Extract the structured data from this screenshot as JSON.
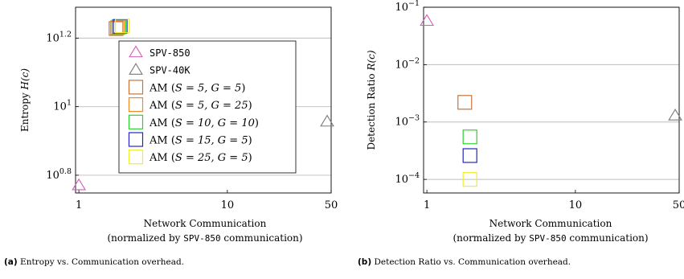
{
  "chart_data": [
    {
      "type": "scatter",
      "panel": "a",
      "xscale": "log",
      "yscale": "log",
      "xlim": [
        0.95,
        50
      ],
      "ylim": [
        5.6,
        19.5
      ],
      "grid": "horizontal",
      "legend_position": "top-right",
      "xlabel": "Network Communication",
      "xlabel_note_prefix": "(normalized by ",
      "xlabel_note_mono": "SPV-850",
      "xlabel_note_suffix": " communication)",
      "ylabel": "Entropy ",
      "ylabel_math": "H(c)",
      "xticks": [
        {
          "value": 1,
          "label": "1"
        },
        {
          "value": 10,
          "label": "10"
        },
        {
          "value": 50,
          "label": "50"
        }
      ],
      "yticks": [
        {
          "value": 6.3096,
          "base": "10",
          "exp": "0.8"
        },
        {
          "value": 10,
          "base": "10",
          "exp": "1"
        },
        {
          "value": 15.849,
          "base": "10",
          "exp": "1.2"
        }
      ],
      "series": [
        {
          "name": "SPV-850",
          "marker": "triangle",
          "color": "#d65cb6",
          "mono": true,
          "points": [
            [
              1.0,
              5.9
            ]
          ]
        },
        {
          "name": "SPV-40K",
          "marker": "triangle",
          "color": "#7a7a7a",
          "mono": true,
          "points": [
            [
              47.0,
              9.05
            ]
          ]
        },
        {
          "name_text": "AM (",
          "name_math": "S = 5, G = 5",
          "name_end": ")",
          "marker": "square",
          "color": "#c8733a",
          "points": [
            [
              1.78,
              16.9
            ]
          ]
        },
        {
          "name_text": "AM (",
          "name_math": "S = 5, G = 25",
          "name_end": ")",
          "marker": "square",
          "color": "#f08a24",
          "points": [
            [
              1.82,
              17.0
            ]
          ]
        },
        {
          "name_text": "AM (",
          "name_math": "S = 10, G = 10",
          "name_end": ")",
          "marker": "square",
          "color": "#2fd12f",
          "points": [
            [
              1.86,
              17.1
            ]
          ]
        },
        {
          "name_text": "AM (",
          "name_math": "S = 15, G = 5",
          "name_end": ")",
          "marker": "square",
          "color": "#2424c8",
          "points": [
            [
              1.9,
              17.15
            ]
          ]
        },
        {
          "name_text": "AM (",
          "name_math": "S = 25, G = 5",
          "name_end": ")",
          "marker": "square",
          "color": "#eeee2e",
          "points": [
            [
              1.96,
              17.2
            ]
          ]
        }
      ]
    },
    {
      "type": "scatter",
      "panel": "b",
      "xscale": "log",
      "yscale": "log",
      "xlim": [
        0.95,
        50
      ],
      "ylim": [
        5.8e-05,
        0.1
      ],
      "grid": "horizontal",
      "xlabel": "Network Communication",
      "xlabel_note_prefix": "(normalized by ",
      "xlabel_note_mono": "SPV-850",
      "xlabel_note_suffix": " communication)",
      "ylabel": "Detection Ratio ",
      "ylabel_math": "R(c)",
      "xticks": [
        {
          "value": 1,
          "label": "1"
        },
        {
          "value": 10,
          "label": "10"
        },
        {
          "value": 50,
          "label": "50"
        }
      ],
      "yticks": [
        {
          "value": 0.0001,
          "base": "10",
          "exp": "−4"
        },
        {
          "value": 0.001,
          "base": "10",
          "exp": "−3"
        },
        {
          "value": 0.01,
          "base": "10",
          "exp": "−2"
        },
        {
          "value": 0.1,
          "base": "10",
          "exp": "−1"
        }
      ],
      "series": [
        {
          "name": "SPV-850",
          "marker": "triangle",
          "color": "#d65cb6",
          "points": [
            [
              1.0,
              0.058
            ]
          ]
        },
        {
          "name": "SPV-40K",
          "marker": "triangle",
          "color": "#7a7a7a",
          "points": [
            [
              47.0,
              0.0013
            ]
          ]
        },
        {
          "name": "AM (S = 5, G = 5)",
          "marker": "square",
          "color": "#c8733a",
          "points": [
            [
              1.8,
              0.0022
            ]
          ]
        },
        {
          "name": "AM (S = 10, G = 10)",
          "marker": "square",
          "color": "#2fd12f",
          "points": [
            [
              1.95,
              0.00055
            ]
          ]
        },
        {
          "name": "AM (S = 15, G = 5)",
          "marker": "square",
          "color": "#2424c8",
          "points": [
            [
              1.95,
              0.00026
            ]
          ]
        },
        {
          "name": "AM (S = 25, G = 5)",
          "marker": "square",
          "color": "#eeee2e",
          "points": [
            [
              1.95,
              0.0001
            ]
          ]
        }
      ]
    }
  ],
  "captions": {
    "a_tag": "(a)",
    "a_text": " Entropy vs. Communication overhead.",
    "b_tag": "(b)",
    "b_text": " Detection Ratio vs. Communication overhead."
  }
}
